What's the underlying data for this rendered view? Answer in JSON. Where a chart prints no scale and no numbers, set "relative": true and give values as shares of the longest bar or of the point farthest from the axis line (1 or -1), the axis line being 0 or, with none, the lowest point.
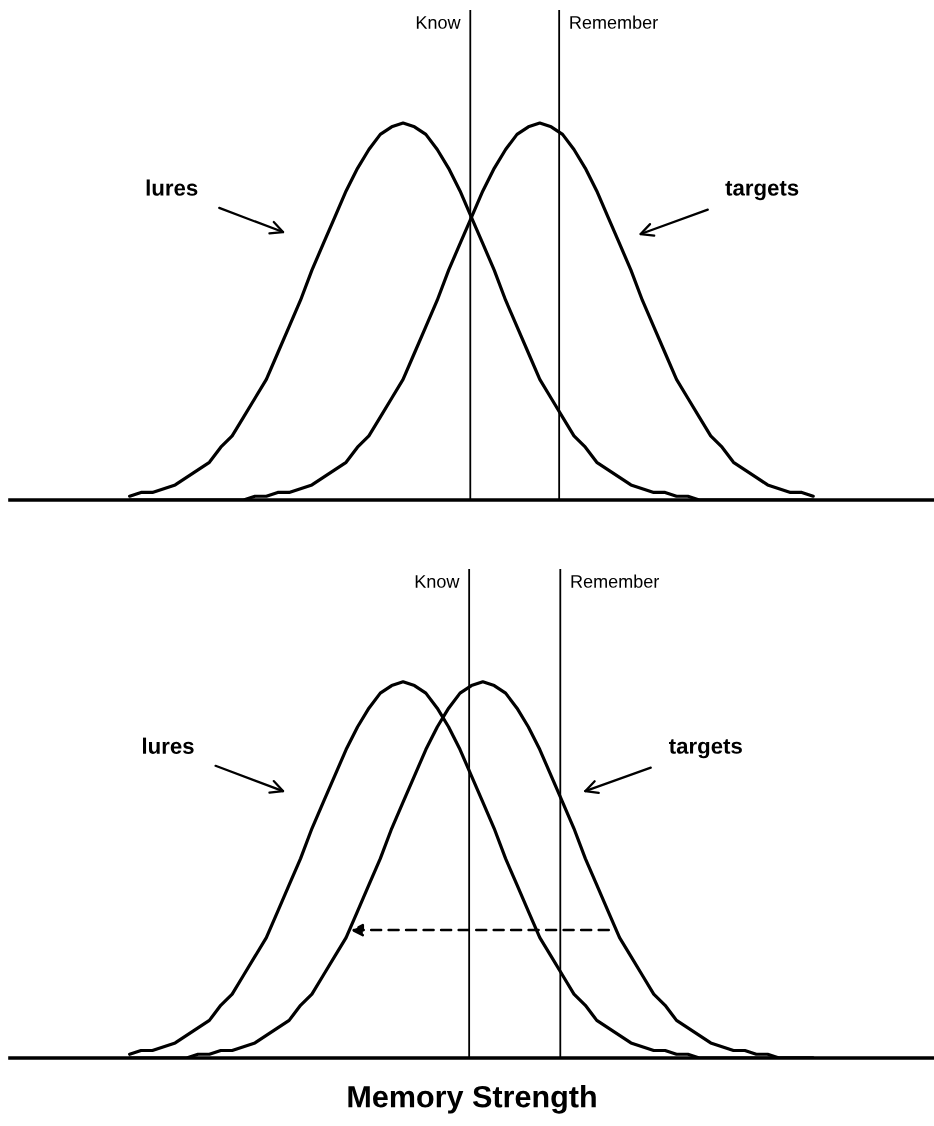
{
  "chart_data": [
    {
      "type": "line",
      "relative": true,
      "categories": [
        null,
        null,
        null,
        null,
        null,
        null,
        null,
        null,
        null,
        null,
        null,
        null,
        null,
        null,
        null,
        null,
        null,
        null,
        null,
        null,
        null,
        null,
        null,
        null,
        null,
        null,
        null,
        null,
        null,
        null,
        null,
        null,
        null,
        null,
        null,
        null,
        null,
        null,
        null,
        null,
        null,
        null,
        null,
        null,
        null,
        null,
        null,
        null,
        null,
        null,
        null,
        null,
        null,
        null,
        null,
        null,
        null,
        null,
        null,
        null,
        null
      ],
      "series": [
        {
          "color": "#000000",
          "values": [
            0.01,
            0.02,
            0.02,
            0.03,
            0.04,
            0.06,
            0.08,
            0.1,
            0.14,
            0.17,
            0.22,
            0.27,
            0.32,
            0.39,
            0.46,
            0.53,
            0.61,
            0.68,
            0.75,
            0.82,
            0.88,
            0.93,
            0.97,
            0.99,
            1,
            0.99,
            0.97,
            0.93,
            0.88,
            0.82,
            0.75,
            0.68,
            0.61,
            0.53,
            0.46,
            0.39,
            0.32,
            0.27,
            0.22,
            0.17,
            0.14,
            0.1,
            0.08,
            0.06,
            0.04,
            0.03,
            0.02,
            0.02,
            0.01,
            0.01,
            0,
            0,
            0,
            0,
            0,
            0,
            0,
            0,
            0,
            0,
            0
          ]
        },
        {
          "color": "#000000",
          "values": [
            0,
            0,
            0,
            0,
            0,
            0,
            0,
            0,
            0,
            0,
            0,
            0.01,
            0.01,
            0.02,
            0.02,
            0.03,
            0.04,
            0.06,
            0.08,
            0.1,
            0.14,
            0.17,
            0.22,
            0.27,
            0.32,
            0.39,
            0.46,
            0.53,
            0.61,
            0.68,
            0.75,
            0.82,
            0.88,
            0.93,
            0.97,
            0.99,
            1,
            0.99,
            0.97,
            0.93,
            0.88,
            0.82,
            0.75,
            0.68,
            0.61,
            0.53,
            0.46,
            0.39,
            0.32,
            0.27,
            0.22,
            0.17,
            0.14,
            0.1,
            0.08,
            0.06,
            0.04,
            0.03,
            0.02,
            0.02,
            0.01
          ]
        }
      ],
      "annotations": [
        "Know",
        "Remember",
        "lures",
        "targets"
      ]
    },
    {
      "type": "line",
      "relative": true,
      "xlabel": "Memory Strength",
      "categories": [
        null,
        null,
        null,
        null,
        null,
        null,
        null,
        null,
        null,
        null,
        null,
        null,
        null,
        null,
        null,
        null,
        null,
        null,
        null,
        null,
        null,
        null,
        null,
        null,
        null,
        null,
        null,
        null,
        null,
        null,
        null,
        null,
        null,
        null,
        null,
        null,
        null,
        null,
        null,
        null,
        null,
        null,
        null,
        null,
        null,
        null,
        null,
        null,
        null,
        null,
        null,
        null,
        null,
        null,
        null,
        null,
        null,
        null,
        null,
        null,
        null
      ],
      "series": [
        {
          "color": "#000000",
          "values": [
            0.01,
            0.02,
            0.02,
            0.03,
            0.04,
            0.06,
            0.08,
            0.1,
            0.14,
            0.17,
            0.22,
            0.27,
            0.32,
            0.39,
            0.46,
            0.53,
            0.61,
            0.68,
            0.75,
            0.82,
            0.88,
            0.93,
            0.97,
            0.99,
            1,
            0.99,
            0.97,
            0.93,
            0.88,
            0.82,
            0.75,
            0.68,
            0.61,
            0.53,
            0.46,
            0.39,
            0.32,
            0.27,
            0.22,
            0.17,
            0.14,
            0.1,
            0.08,
            0.06,
            0.04,
            0.03,
            0.02,
            0.02,
            0.01,
            0.01,
            0,
            0,
            0,
            0,
            0,
            0,
            0,
            0,
            0,
            0,
            0
          ]
        },
        {
          "color": "#000000",
          "values": [
            0,
            0,
            0,
            0,
            0,
            0,
            0.01,
            0.01,
            0.02,
            0.02,
            0.03,
            0.04,
            0.06,
            0.08,
            0.1,
            0.14,
            0.17,
            0.22,
            0.27,
            0.32,
            0.39,
            0.46,
            0.53,
            0.61,
            0.68,
            0.75,
            0.82,
            0.88,
            0.93,
            0.97,
            0.99,
            1,
            0.99,
            0.97,
            0.93,
            0.88,
            0.82,
            0.75,
            0.68,
            0.61,
            0.53,
            0.46,
            0.39,
            0.32,
            0.27,
            0.22,
            0.17,
            0.14,
            0.1,
            0.08,
            0.06,
            0.04,
            0.03,
            0.02,
            0.02,
            0.01,
            0.01,
            0,
            0,
            0,
            0
          ]
        }
      ],
      "annotations": [
        "Know",
        "Remember",
        "lures",
        "targets"
      ]
    }
  ]
}
